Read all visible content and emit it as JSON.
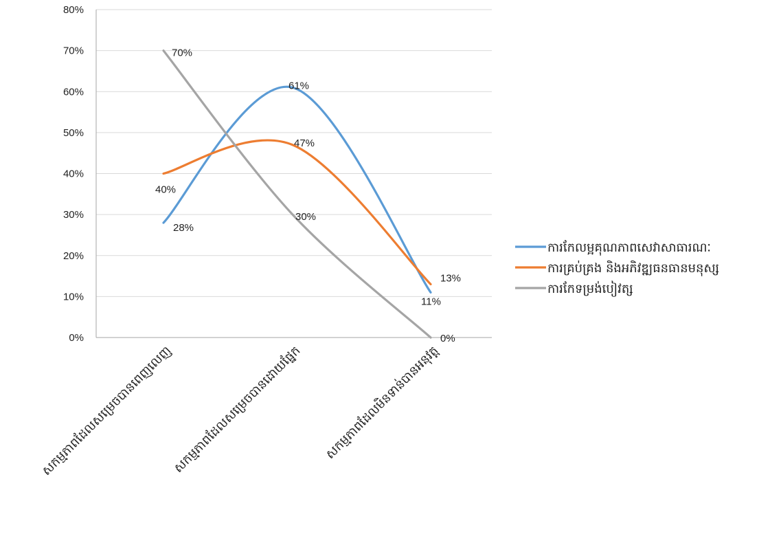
{
  "chart_data": {
    "type": "line",
    "smooth": true,
    "categories": [
      "សកម្មភាពដែលសម្រេចបានពេញលេញ",
      "សកម្មភាពដែលសម្រេចបានដោយផ្នែក",
      "សកម្មភាពដែលមិនទាន់បានអនុវត្ត"
    ],
    "y_ticks": [
      "0%",
      "10%",
      "20%",
      "30%",
      "40%",
      "50%",
      "60%",
      "70%",
      "80%"
    ],
    "ylim": [
      0,
      80
    ],
    "grid": true,
    "legend_position": "right",
    "series": [
      {
        "name": "ការកែលម្អគុណភាពសេវាសាធារណៈ",
        "color": "#5b9bd5",
        "values": [
          28,
          61,
          11
        ],
        "labels": [
          "28%",
          "61%",
          "11%"
        ]
      },
      {
        "name": "ការគ្រប់គ្រង និងអភិវឌ្ឍធនធានមនុស្ស",
        "color": "#ed7d31",
        "values": [
          40,
          47,
          13
        ],
        "labels": [
          "40%",
          "47%",
          "13%"
        ]
      },
      {
        "name": "ការកែទម្រង់បៀវត្ស",
        "color": "#a5a5a5",
        "values": [
          70,
          30,
          0
        ],
        "labels": [
          "70%",
          "30%",
          "0%"
        ]
      }
    ]
  }
}
